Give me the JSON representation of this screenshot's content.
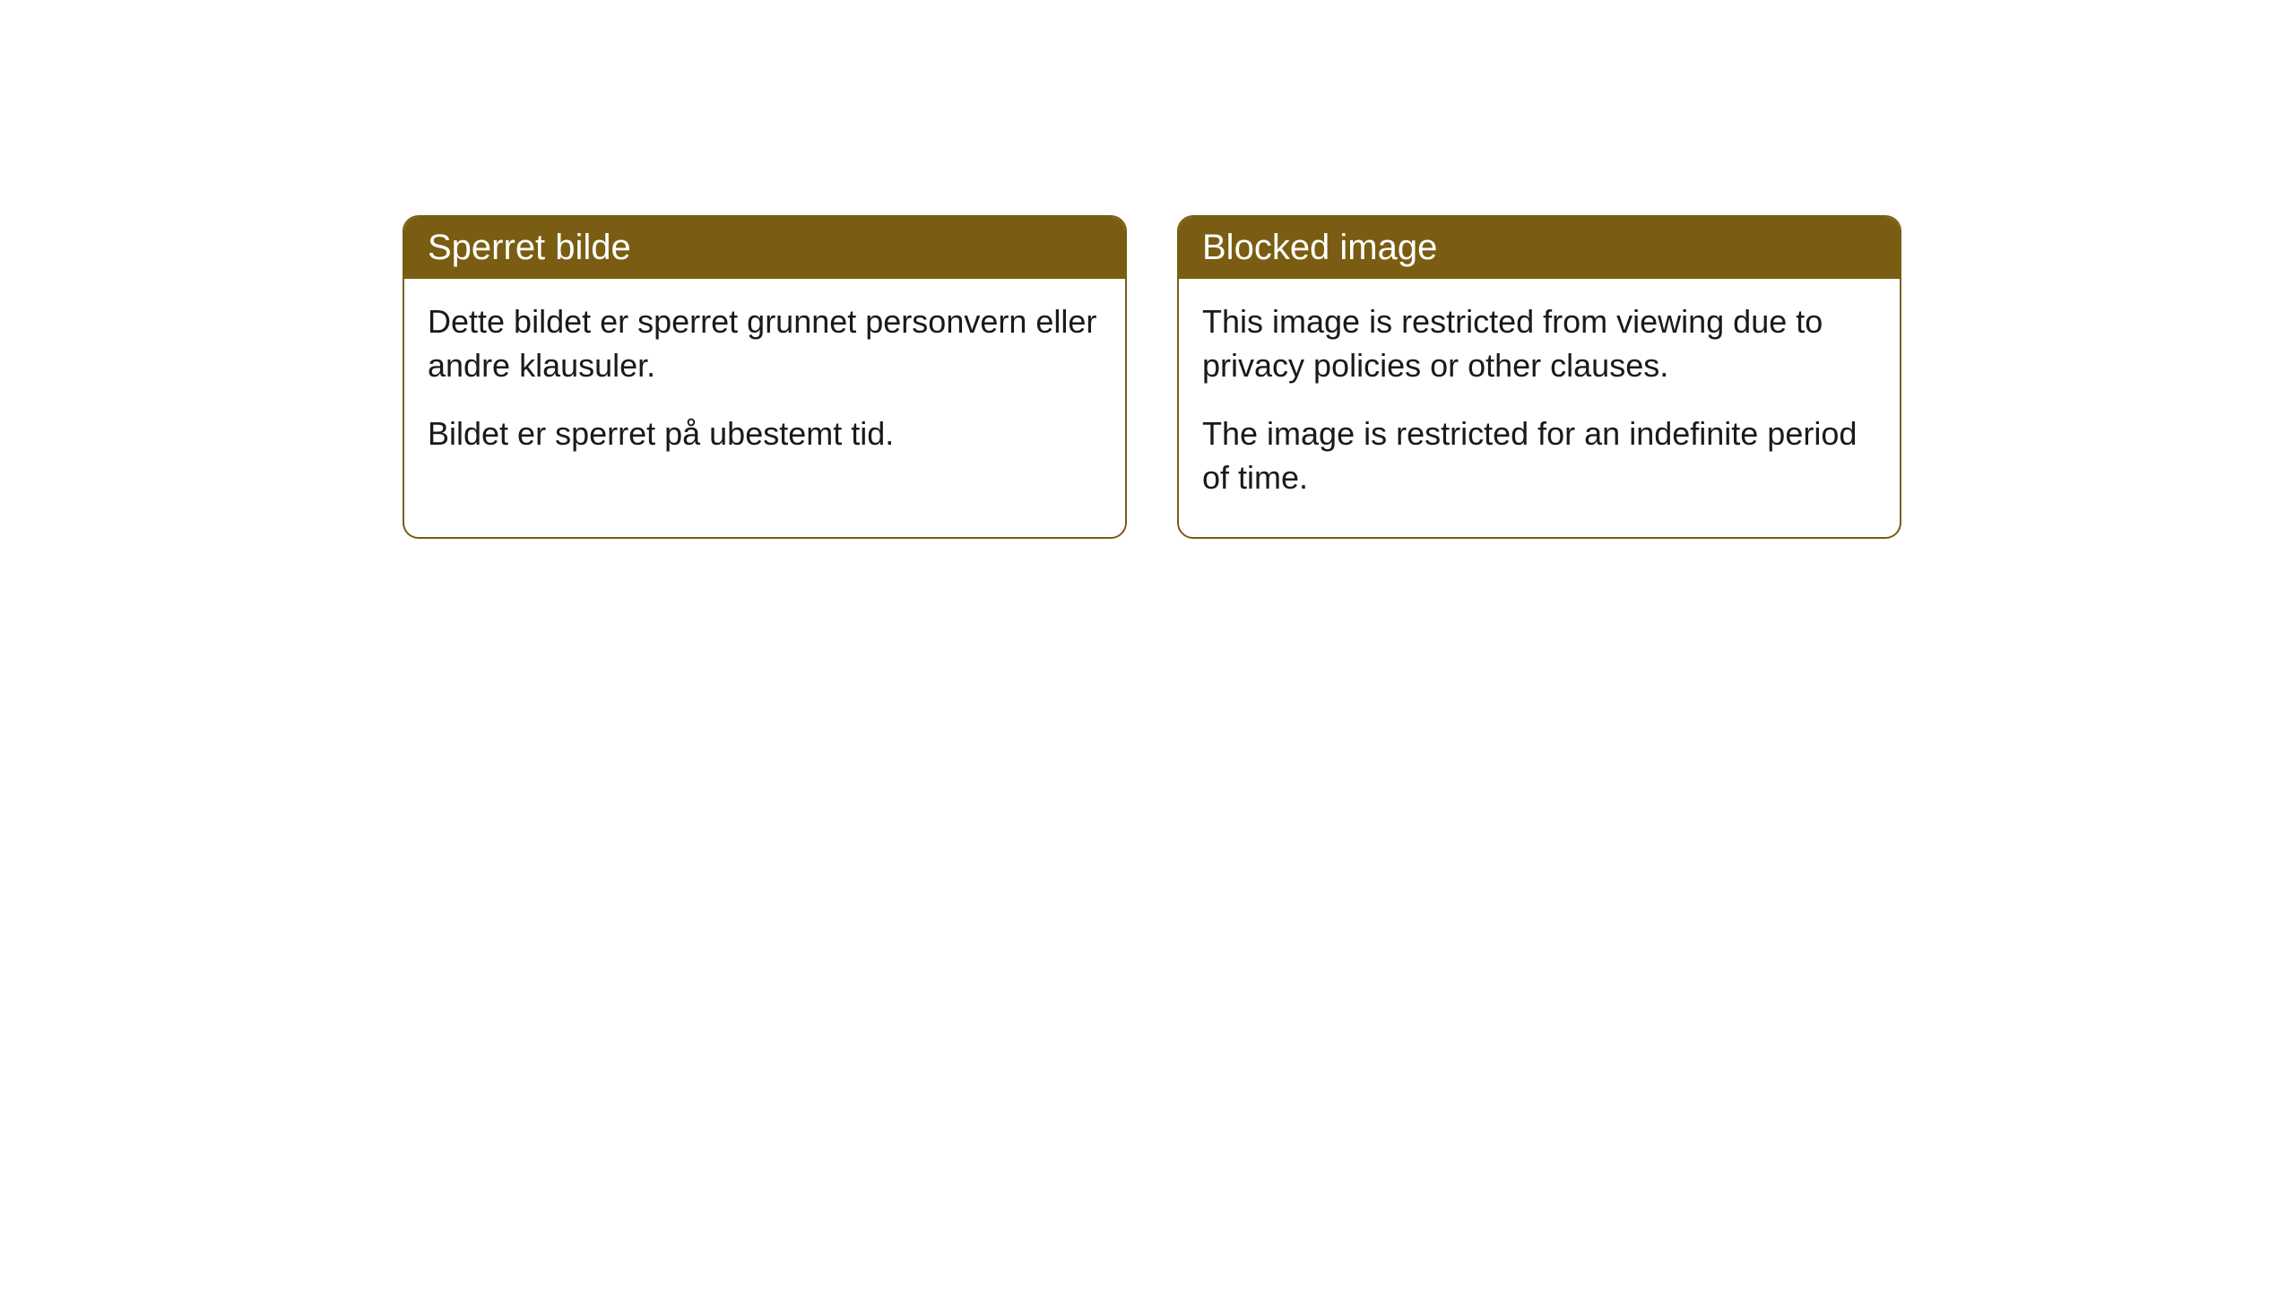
{
  "cards": [
    {
      "title": "Sperret bilde",
      "paragraph1": "Dette bildet er sperret grunnet personvern eller andre klausuler.",
      "paragraph2": "Bildet er sperret på ubestemt tid."
    },
    {
      "title": "Blocked image",
      "paragraph1": "This image is restricted from viewing due to privacy policies or other clauses.",
      "paragraph2": "The image is restricted for an indefinite period of time."
    }
  ],
  "styling": {
    "header_background": "#7a5d12",
    "header_text_color": "#ffffff",
    "border_color": "#7a5d12",
    "body_background": "#ffffff",
    "body_text_color": "#1a1a1a",
    "border_radius": 18,
    "title_fontsize": 40,
    "body_fontsize": 36
  }
}
